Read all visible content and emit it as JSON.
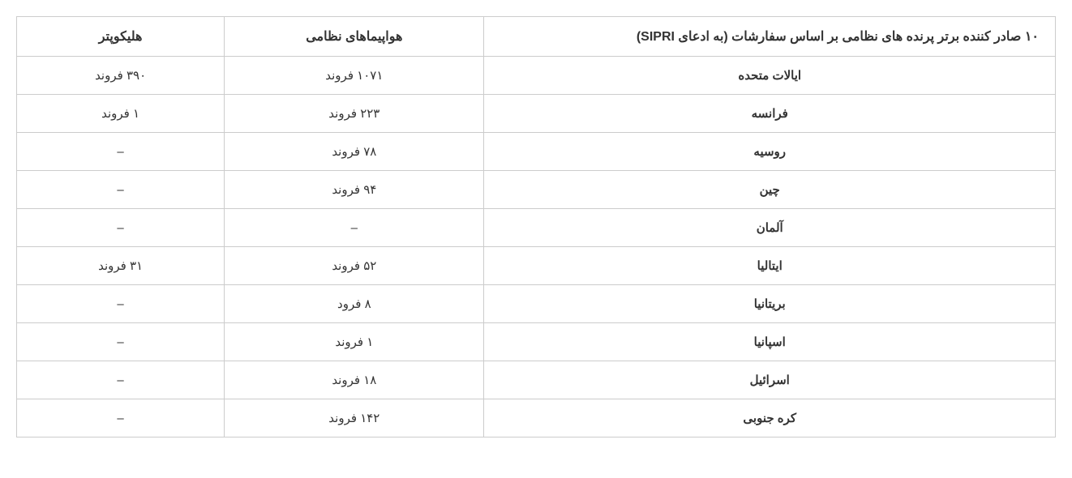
{
  "table": {
    "type": "table",
    "direction": "rtl",
    "columns": {
      "country": "۱۰ صادر کننده برتر پرنده های نظامی بر اساس سفارشات (به ادعای SIPRI)",
      "aircraft": "هواپیماهای نظامی",
      "helicopter": "هلیکوپتر"
    },
    "rows": [
      {
        "country": "ایالات متحده",
        "aircraft": "۱۰۷۱ فروند",
        "helicopter": "۳۹۰ فروند"
      },
      {
        "country": "فرانسه",
        "aircraft": "۲۲۳ فروند",
        "helicopter": "۱ فروند"
      },
      {
        "country": "روسیه",
        "aircraft": "۷۸ فروند",
        "helicopter": "–"
      },
      {
        "country": "چین",
        "aircraft": "۹۴ فروند",
        "helicopter": "–"
      },
      {
        "country": "آلمان",
        "aircraft": "–",
        "helicopter": "–"
      },
      {
        "country": "ایتالیا",
        "aircraft": "۵۲ فروند",
        "helicopter": "۳۱ فروند"
      },
      {
        "country": "بریتانیا",
        "aircraft": "۸ فرود",
        "helicopter": "–"
      },
      {
        "country": "اسپانیا",
        "aircraft": "۱ فروند",
        "helicopter": "–"
      },
      {
        "country": "اسرائیل",
        "aircraft": "۱۸ فروند",
        "helicopter": "–"
      },
      {
        "country": "کره جنوبی",
        "aircraft": "۱۴۲ فروند",
        "helicopter": "–"
      }
    ],
    "styling": {
      "border_color": "#cccccc",
      "background_color": "#ffffff",
      "text_color": "#333333",
      "header_fontsize": 16,
      "cell_fontsize": 15,
      "header_fontweight": "bold",
      "country_fontweight": "bold",
      "col_widths": {
        "country": "55%",
        "aircraft": "25%",
        "helicopter": "20%"
      },
      "cell_padding": "14px 10px",
      "text_align": "center",
      "country_header_align": "right"
    }
  }
}
